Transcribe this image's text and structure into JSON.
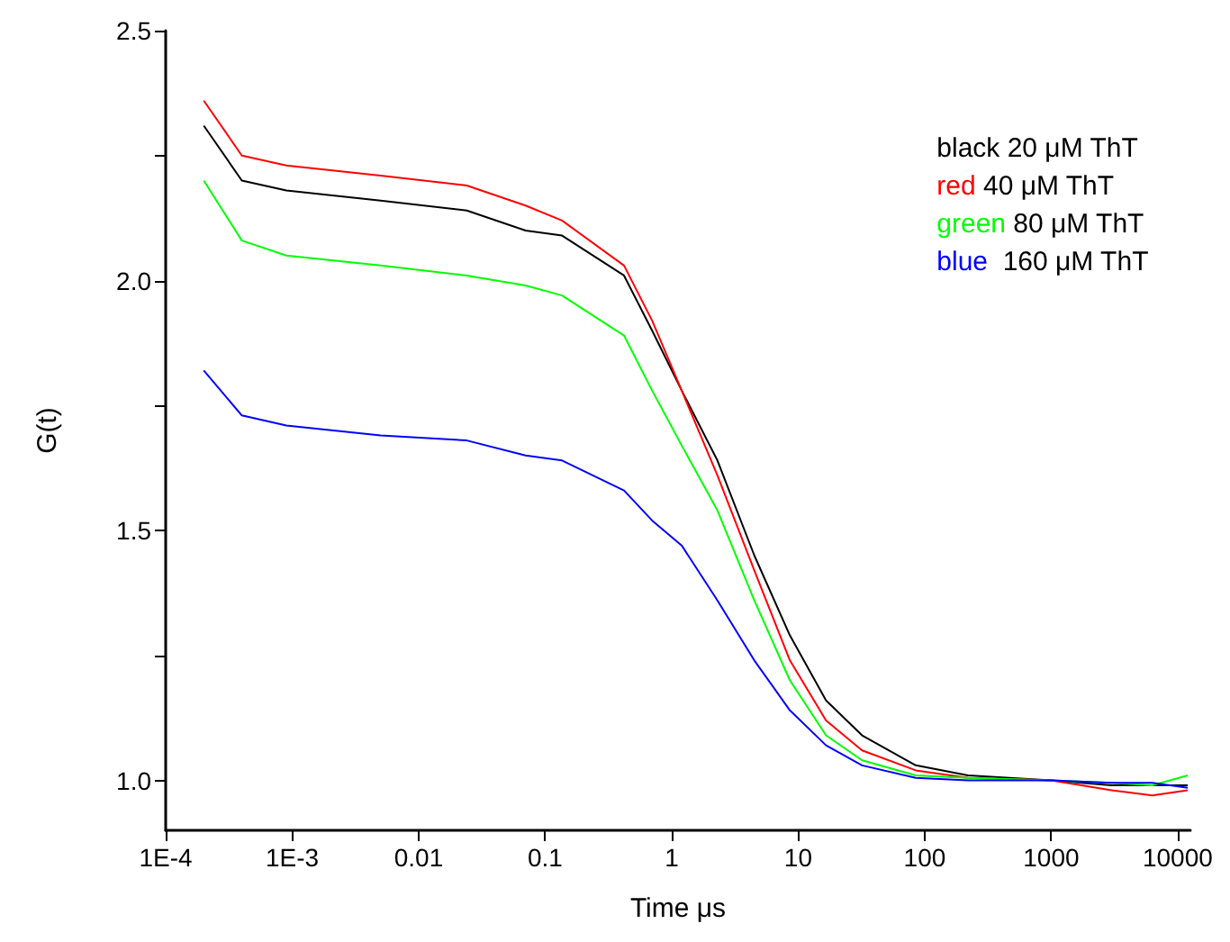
{
  "chart_data": {
    "type": "line",
    "xlabel": "Time μs",
    "ylabel": "G(t)",
    "log": "x",
    "grid": false,
    "legend": "top right",
    "marker": "none",
    "line_style": "solid",
    "x": [
      0.0002,
      0.0004,
      0.0009,
      0.005,
      0.024,
      0.07,
      0.136,
      0.42,
      0.7,
      1.2,
      2.3,
      4.5,
      8.6,
      16.6,
      32,
      85,
      220,
      1000,
      3000,
      6300,
      12000
    ],
    "xlim": [
      0.0001,
      12600
    ],
    "xticks": [
      {
        "value": 0.0001,
        "label": "1E-4"
      },
      {
        "value": 0.001,
        "label": "1E-3"
      },
      0.01,
      0.1,
      1,
      10,
      100,
      1000,
      10000
    ],
    "ylim": [
      0.9,
      2.5
    ],
    "yticks": [
      {
        "value": 1,
        "label": "1.0"
      },
      {
        "value": 1.25,
        "label": null
      },
      {
        "value": 1.5,
        "label": "1.5"
      },
      {
        "value": 1.75,
        "label": null
      },
      {
        "value": 2,
        "label": "2.0"
      },
      {
        "value": 2.25,
        "label": null
      },
      {
        "value": 2.5,
        "label": "2.5"
      }
    ],
    "series": [
      {
        "name": "black 20 μM ThT",
        "color": "#000000",
        "values": [
          2.31,
          2.2,
          2.18,
          2.16,
          2.14,
          2.1,
          2.09,
          2.01,
          1.9,
          1.78,
          1.64,
          1.45,
          1.29,
          1.16,
          1.09,
          1.03,
          1.01,
          1.0,
          0.99,
          0.99,
          0.99
        ]
      },
      {
        "name": "red 40 μM ThT",
        "color": "#ff0000",
        "values": [
          2.36,
          2.25,
          2.23,
          2.21,
          2.19,
          2.15,
          2.12,
          2.03,
          1.92,
          1.78,
          1.61,
          1.42,
          1.24,
          1.12,
          1.06,
          1.02,
          1.005,
          1.0,
          0.98,
          0.97,
          0.98
        ]
      },
      {
        "name": "green 80 μM ThT",
        "color": "#00ff00",
        "values": [
          2.2,
          2.08,
          2.05,
          2.03,
          2.01,
          1.99,
          1.97,
          1.89,
          1.78,
          1.67,
          1.54,
          1.36,
          1.2,
          1.09,
          1.04,
          1.01,
          1.005,
          1.0,
          0.995,
          0.99,
          1.01
        ]
      },
      {
        "name": "blue  160 μM ThT",
        "color": "#0000ff",
        "values": [
          1.82,
          1.73,
          1.71,
          1.69,
          1.68,
          1.65,
          1.64,
          1.58,
          1.52,
          1.47,
          1.36,
          1.24,
          1.14,
          1.07,
          1.03,
          1.005,
          1.0,
          1.0,
          0.995,
          0.995,
          0.985
        ]
      }
    ]
  }
}
